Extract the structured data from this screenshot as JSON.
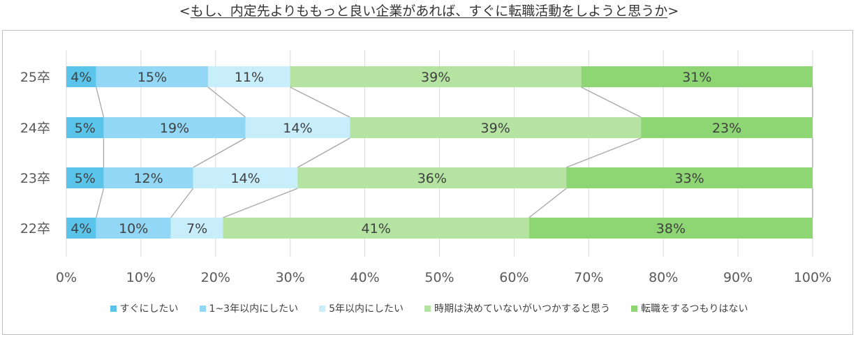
{
  "title": {
    "open": "<",
    "text": "もし、内定先よりももっと良い企業があれば、すぐに転職活動をしようと思うか",
    "close": ">"
  },
  "colors": [
    "#5bc4ea",
    "#92d7f5",
    "#c8eefb",
    "#b5e3a2",
    "#8dd673"
  ],
  "chart_data": {
    "type": "bar",
    "orientation": "horizontal",
    "stacked": true,
    "percent": true,
    "categories": [
      "25卒",
      "24卒",
      "23卒",
      "22卒"
    ],
    "series": [
      {
        "name": "すぐにしたい",
        "values": [
          4,
          5,
          5,
          4
        ]
      },
      {
        "name": "1~3年以内にしたい",
        "values": [
          15,
          19,
          12,
          10
        ]
      },
      {
        "name": "5年以内にしたい",
        "values": [
          11,
          14,
          14,
          7
        ]
      },
      {
        "name": "時期は決めていないがいつかすると思う",
        "values": [
          39,
          39,
          36,
          41
        ]
      },
      {
        "name": "転職をするつもりはない",
        "values": [
          31,
          23,
          33,
          38
        ]
      }
    ],
    "xlim": [
      0,
      100
    ],
    "xticks": [
      "0%",
      "10%",
      "20%",
      "30%",
      "40%",
      "50%",
      "60%",
      "70%",
      "80%",
      "90%",
      "100%"
    ],
    "grid": true,
    "series_lines": true,
    "legend": "bottom"
  }
}
